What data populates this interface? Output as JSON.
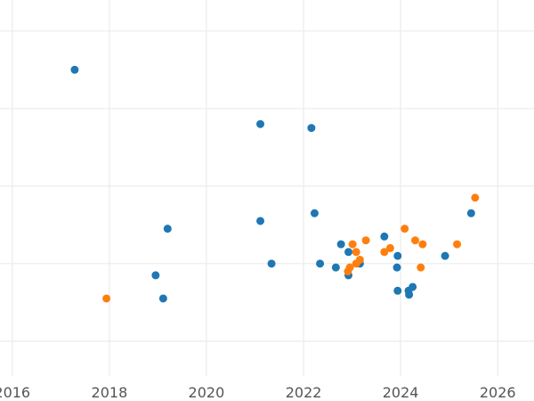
{
  "chart_data": {
    "type": "scatter",
    "title": "",
    "xlabel": "",
    "ylabel": "",
    "x_axis": "date",
    "xlim": [
      "2015-10-01",
      "2026-10-01"
    ],
    "ylim": [
      -0.9,
      8.8
    ],
    "x_ticks": [
      "2016",
      "2018",
      "2020",
      "2022",
      "2024",
      "2026"
    ],
    "y_gridlines": [
      0,
      2,
      4,
      6,
      8
    ],
    "grid": true,
    "legend": "none",
    "series": [
      {
        "color": "#1f77b4",
        "points": [
          {
            "x": "2017-04-15",
            "y": 7.0
          },
          {
            "x": "2018-12-15",
            "y": 1.7
          },
          {
            "x": "2019-02-10",
            "y": 1.1
          },
          {
            "x": "2019-03-15",
            "y": 2.9
          },
          {
            "x": "2021-02-10",
            "y": 5.6
          },
          {
            "x": "2021-02-10",
            "y": 3.1
          },
          {
            "x": "2021-05-05",
            "y": 2.0
          },
          {
            "x": "2022-03-01",
            "y": 5.5
          },
          {
            "x": "2022-03-25",
            "y": 3.3
          },
          {
            "x": "2022-05-05",
            "y": 2.0
          },
          {
            "x": "2022-09-01",
            "y": 1.9
          },
          {
            "x": "2022-10-10",
            "y": 2.5
          },
          {
            "x": "2022-12-05",
            "y": 1.7
          },
          {
            "x": "2022-12-05",
            "y": 2.3
          },
          {
            "x": "2023-03-01",
            "y": 2.0
          },
          {
            "x": "2023-09-01",
            "y": 2.7
          },
          {
            "x": "2023-12-05",
            "y": 1.9
          },
          {
            "x": "2023-12-10",
            "y": 1.3
          },
          {
            "x": "2023-12-10",
            "y": 2.2
          },
          {
            "x": "2024-03-01",
            "y": 1.3
          },
          {
            "x": "2024-03-05",
            "y": 1.2
          },
          {
            "x": "2024-04-01",
            "y": 1.4
          },
          {
            "x": "2024-12-01",
            "y": 2.2
          },
          {
            "x": "2025-06-15",
            "y": 3.3
          }
        ]
      },
      {
        "color": "#ff7f0e",
        "points": [
          {
            "x": "2017-12-10",
            "y": 1.1
          },
          {
            "x": "2022-12-01",
            "y": 1.8
          },
          {
            "x": "2022-12-15",
            "y": 1.9
          },
          {
            "x": "2023-01-05",
            "y": 2.5
          },
          {
            "x": "2023-02-01",
            "y": 2.3
          },
          {
            "x": "2023-02-01",
            "y": 2.0
          },
          {
            "x": "2023-03-01",
            "y": 2.1
          },
          {
            "x": "2023-04-15",
            "y": 2.6
          },
          {
            "x": "2023-09-01",
            "y": 2.3
          },
          {
            "x": "2023-10-15",
            "y": 2.4
          },
          {
            "x": "2024-02-01",
            "y": 2.9
          },
          {
            "x": "2024-04-20",
            "y": 2.6
          },
          {
            "x": "2024-06-01",
            "y": 1.9
          },
          {
            "x": "2024-06-15",
            "y": 2.5
          },
          {
            "x": "2025-03-01",
            "y": 2.5
          },
          {
            "x": "2025-07-15",
            "y": 3.7
          }
        ]
      }
    ]
  }
}
